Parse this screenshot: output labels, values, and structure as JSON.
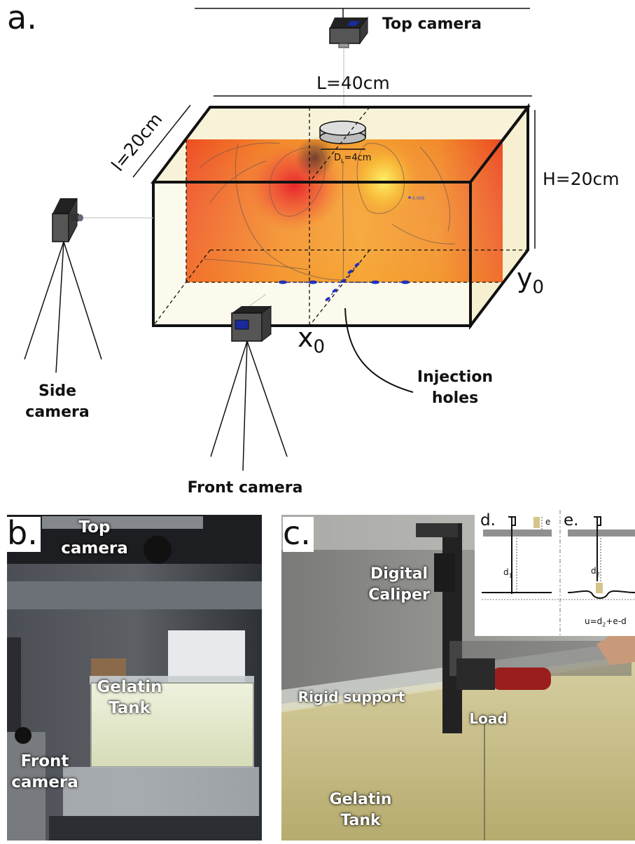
{
  "panel_a": {
    "letter": "a.",
    "top_camera": "Top camera",
    "side_camera": [
      "Side",
      "camera"
    ],
    "front_camera": "Front camera",
    "injection_holes": [
      "Injection",
      "holes"
    ],
    "length": "L=40cm",
    "width": "l=20cm",
    "height": "H=20cm",
    "diameter_prefix": "D",
    "diameter_sub": "L",
    "diameter_suffix": "=4cm",
    "x0_base": "x",
    "x0_sub": "0",
    "y0_base": "y",
    "y0_sub": "0",
    "contour_label": "0.056"
  },
  "panel_b": {
    "letter": "b.",
    "top_camera": [
      "Top",
      "camera"
    ],
    "gelatin_tank": [
      "Gelatin",
      "Tank"
    ],
    "front_camera": [
      "Front",
      "camera"
    ]
  },
  "panel_c": {
    "letter": "c.",
    "digital_caliper": [
      "Digital",
      "Caliper"
    ],
    "rigid_support": "Rigid support",
    "load": "Load",
    "gelatin_tank": [
      "Gelatin",
      "Tank"
    ]
  },
  "inset": {
    "d_letter": "d.",
    "e_letter": "e.",
    "e_label": "e",
    "d1_base": "d",
    "d1_sub": "1",
    "d2_base": "d",
    "d2_sub": "2",
    "formula": "u=d",
    "formula_sub": "2",
    "formula_rest": "+e-d"
  },
  "colors": {
    "tank_fill": "#faf6df",
    "heat_edge": "#e8451e",
    "heat_center": "#f7a531",
    "hole_blue": "#1f2fbf",
    "camera_body": "#555555"
  }
}
